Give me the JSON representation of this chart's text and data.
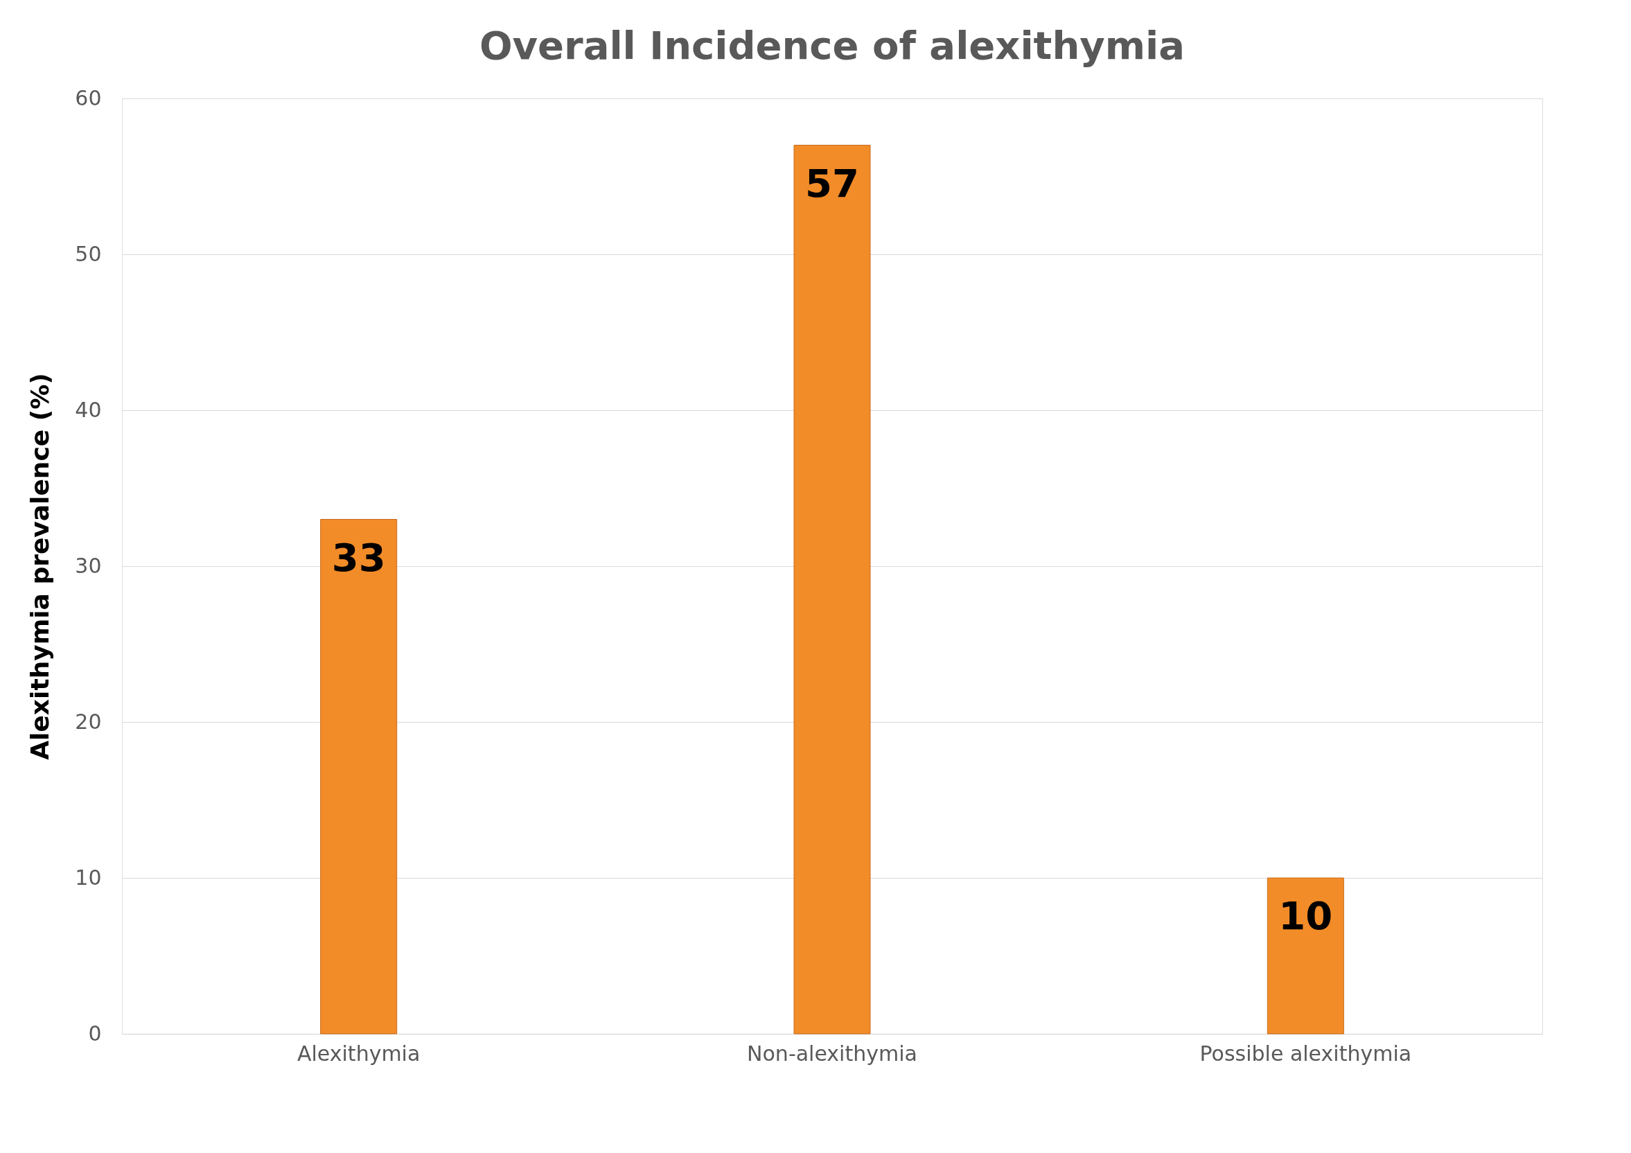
{
  "chart_data": {
    "type": "bar",
    "title": "Overall Incidence of alexithymia",
    "ylabel": "Alexithymia prevalence (%)",
    "categories": [
      "Alexithymia",
      "Non-alexithymia",
      "Possible alexithymia"
    ],
    "values": [
      33,
      57,
      10
    ],
    "color": "#f28c28",
    "ylim": [
      0,
      60
    ],
    "yticks": [
      0,
      10,
      20,
      30,
      40,
      50,
      60
    ],
    "grid": "y",
    "data_labels": true
  }
}
